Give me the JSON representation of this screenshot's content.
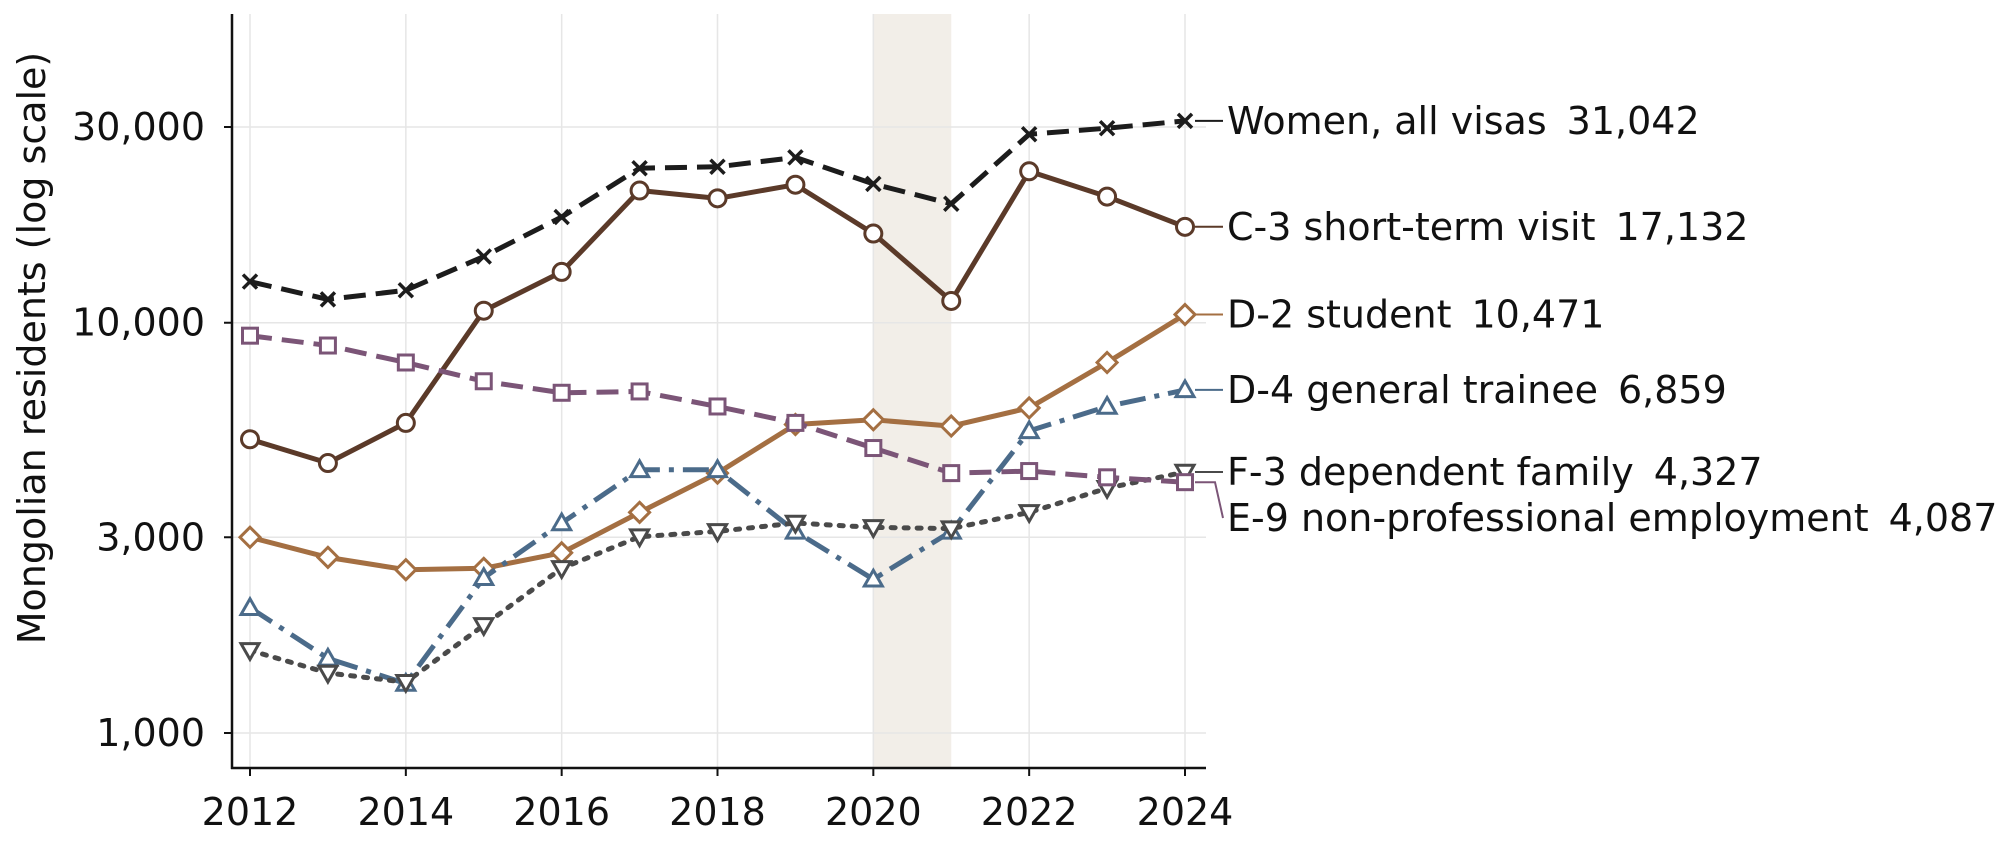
{
  "chart_data": {
    "type": "line",
    "ylabel": "Mongolian residents (log scale)",
    "xlabel": "",
    "yscale": "log",
    "ylim": [
      820,
      52000
    ],
    "xlim": [
      2011.8,
      2024.25
    ],
    "xticks": [
      2012,
      2014,
      2016,
      2018,
      2020,
      2022,
      2024
    ],
    "xtick_labels": [
      "2012",
      "2014",
      "2016",
      "2018",
      "2020",
      "2022",
      "2024"
    ],
    "yticks": [
      1000,
      3000,
      10000,
      30000
    ],
    "ytick_labels": [
      "1,000",
      "3,000",
      "10,000",
      "30,000"
    ],
    "grid": true,
    "shaded_region": [
      2020,
      2021
    ],
    "x": [
      2012,
      2013,
      2014,
      2015,
      2016,
      2017,
      2018,
      2019,
      2020,
      2021,
      2022,
      2023,
      2024
    ],
    "series": [
      {
        "name": "Women, all visas",
        "end_label": "31,042",
        "color": "#1c1c1c",
        "marker": "x",
        "dash": "dashed",
        "values": [
          12600,
          11400,
          12000,
          14500,
          18100,
          23800,
          24000,
          25300,
          21800,
          19500,
          28800,
          29800,
          31042
        ]
      },
      {
        "name": "C-3 short-term visit",
        "end_label": "17,132",
        "color": "#5b3a29",
        "marker": "circle",
        "dash": "solid",
        "values": [
          5200,
          4550,
          5700,
          10700,
          13300,
          21000,
          20100,
          21700,
          16500,
          11300,
          23400,
          20300,
          17132
        ]
      },
      {
        "name": "D-2 student",
        "end_label": "10,471",
        "color": "#a46f42",
        "marker": "diamond",
        "dash": "solid",
        "values": [
          3000,
          2680,
          2500,
          2520,
          2750,
          3450,
          4300,
          5650,
          5800,
          5600,
          6200,
          8000,
          10471
        ]
      },
      {
        "name": "D-4 general trainee",
        "end_label": "6,859",
        "color": "#4b6b8a",
        "marker": "triangle-up",
        "dash": "dashdot",
        "values": [
          2020,
          1520,
          1320,
          2390,
          3250,
          4380,
          4380,
          3100,
          2370,
          3100,
          5450,
          6250,
          6859
        ]
      },
      {
        "name": "F-3 dependent family",
        "end_label": "4,327",
        "color": "#4a4a4a",
        "marker": "triangle-down",
        "dash": "dotted",
        "values": [
          1590,
          1400,
          1330,
          1830,
          2520,
          3010,
          3100,
          3250,
          3170,
          3150,
          3450,
          3950,
          4327
        ]
      },
      {
        "name": "E-9 non-professional employment",
        "end_label": "4,087",
        "color": "#7b5577",
        "marker": "square",
        "dash": "dashed",
        "values": [
          9300,
          8800,
          8000,
          7200,
          6750,
          6800,
          6250,
          5700,
          4950,
          4300,
          4350,
          4200,
          4087
        ]
      }
    ]
  }
}
